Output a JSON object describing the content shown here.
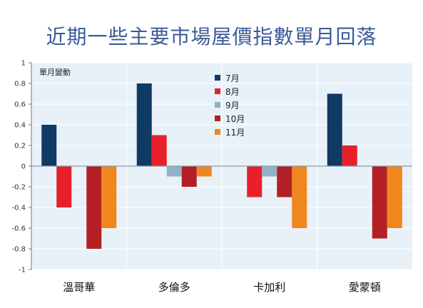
{
  "title": "近期一些主要市場屋價指數單月回落",
  "chart_data": {
    "type": "bar",
    "ylabel": "單月變動",
    "ylim": [
      -1,
      1
    ],
    "yticks": [
      "1",
      "0.8",
      "0.6",
      "0.4",
      "0.2",
      "0",
      "-0.2",
      "-0.4",
      "-0.6",
      "-0.8",
      "-1"
    ],
    "ytick_values": [
      1,
      0.8,
      0.6,
      0.4,
      0.2,
      0,
      -0.2,
      -0.4,
      -0.6,
      -0.8,
      -1
    ],
    "categories": [
      "溫哥華",
      "多倫多",
      "卡加利",
      "愛蒙頓"
    ],
    "series": [
      {
        "name": "7月",
        "color": "#0e3a63",
        "values": [
          0.4,
          0.8,
          null,
          0.7
        ]
      },
      {
        "name": "8月",
        "color": "#e8202a",
        "values": [
          -0.4,
          0.3,
          -0.3,
          0.2
        ]
      },
      {
        "name": "9月",
        "color": "#8fb2c6",
        "values": [
          null,
          -0.1,
          -0.1,
          null
        ]
      },
      {
        "name": "10月",
        "color": "#b21f24",
        "values": [
          -0.8,
          -0.2,
          -0.3,
          -0.7
        ]
      },
      {
        "name": "11月",
        "color": "#f0861e",
        "values": [
          -0.6,
          -0.1,
          -0.6,
          -0.6
        ]
      }
    ],
    "grid": true,
    "legend": "top-center",
    "background": "#e8f1f8"
  }
}
